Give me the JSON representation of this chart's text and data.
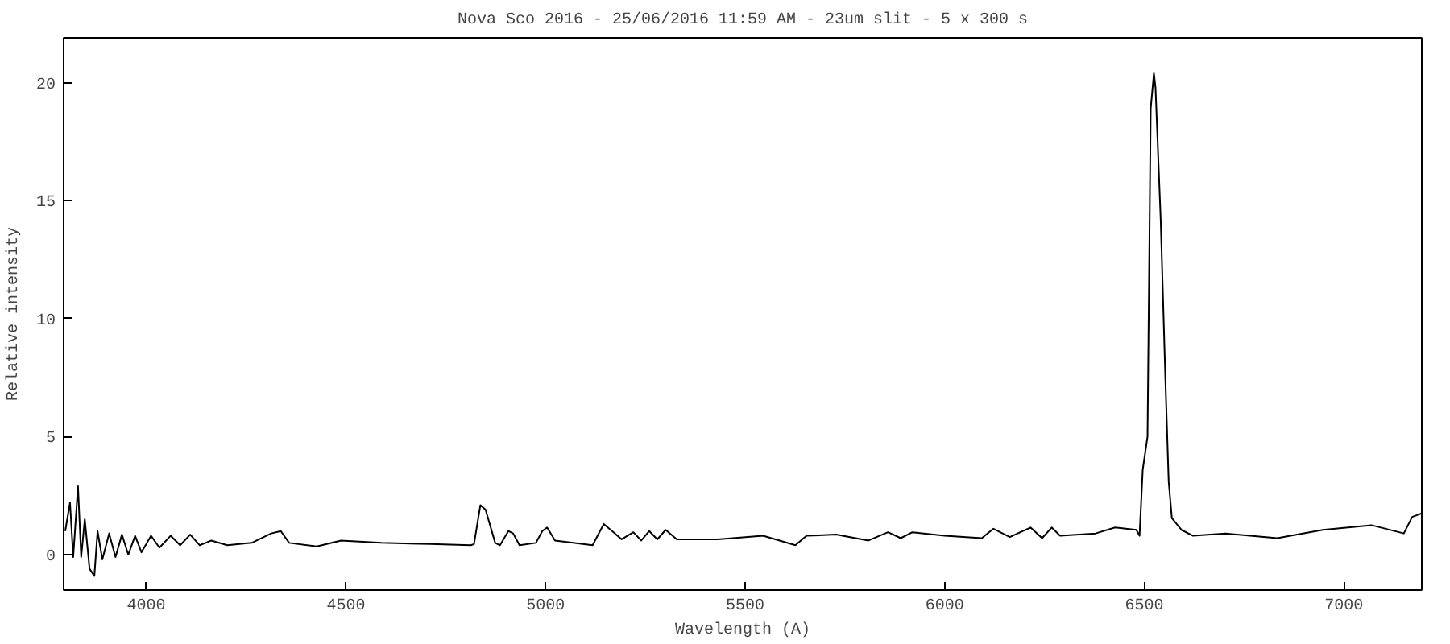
{
  "chart_data": {
    "type": "line",
    "title": "Nova Sco 2016 - 25/06/2016 11:59 AM - 23um slit - 5 x 300 s",
    "xlabel": "Wavelength (A)",
    "ylabel": "Relative intensity",
    "xlim": [
      3793,
      7195
    ],
    "ylim": [
      -1.5,
      21.9
    ],
    "xticks": [
      4000,
      4500,
      5000,
      5500,
      6000,
      6500,
      7000
    ],
    "yticks": [
      0,
      5,
      10,
      15,
      20
    ],
    "grid": false,
    "marker": "none",
    "line_style": "solid",
    "x": [
      3797,
      3809,
      3817,
      3829,
      3837,
      3846,
      3858,
      3870,
      3878,
      3890,
      3907,
      3923,
      3939,
      3955,
      3972,
      3988,
      4012,
      4033,
      4061,
      4085,
      4110,
      4134,
      4163,
      4203,
      4264,
      4313,
      4337,
      4358,
      4427,
      4488,
      4589,
      4711,
      4813,
      4821,
      4837,
      4850,
      4874,
      4886,
      4907,
      4919,
      4935,
      4976,
      4992,
      5004,
      5024,
      5118,
      5146,
      5191,
      5220,
      5240,
      5260,
      5280,
      5301,
      5329,
      5431,
      5545,
      5626,
      5654,
      5728,
      5809,
      5858,
      5890,
      5919,
      6000,
      6093,
      6122,
      6163,
      6215,
      6244,
      6268,
      6289,
      6378,
      6427,
      6480,
      6488,
      6496,
      6508,
      6512,
      6516,
      6524,
      6528,
      6541,
      6553,
      6561,
      6569,
      6593,
      6622,
      6703,
      6833,
      6947,
      7069,
      7150,
      7171,
      7195
    ],
    "series": [
      {
        "color": "#000000",
        "values": [
          1.0,
          2.2,
          -0.1,
          2.9,
          -0.1,
          1.5,
          -0.6,
          -0.9,
          1.0,
          -0.2,
          0.9,
          -0.1,
          0.85,
          0.0,
          0.8,
          0.1,
          0.8,
          0.3,
          0.8,
          0.4,
          0.85,
          0.4,
          0.6,
          0.4,
          0.5,
          0.9,
          1.0,
          0.5,
          0.35,
          0.6,
          0.5,
          0.45,
          0.4,
          0.45,
          2.1,
          1.9,
          0.5,
          0.4,
          1.0,
          0.9,
          0.4,
          0.5,
          1.0,
          1.15,
          0.6,
          0.4,
          1.3,
          0.65,
          0.95,
          0.6,
          1.0,
          0.65,
          1.05,
          0.65,
          0.65,
          0.8,
          0.4,
          0.8,
          0.85,
          0.6,
          0.95,
          0.7,
          0.95,
          0.8,
          0.7,
          1.1,
          0.75,
          1.15,
          0.7,
          1.15,
          0.8,
          0.9,
          1.15,
          1.05,
          0.8,
          3.6,
          5.0,
          11.9,
          18.9,
          20.4,
          19.8,
          14.2,
          7.3,
          3.1,
          1.55,
          1.05,
          0.8,
          0.9,
          0.7,
          1.05,
          1.25,
          0.9,
          1.6,
          1.75
        ]
      }
    ]
  }
}
